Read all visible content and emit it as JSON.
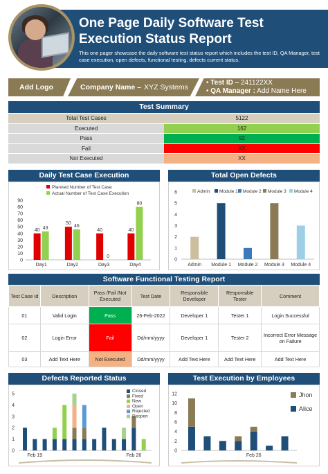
{
  "header": {
    "title": "One Page Daily Software Test Execution Status Report",
    "subtitle": "This one pager showcase the daily software test status report which includes the test ID, QA Manager, test case execution, open defects, functional testing, defects current status."
  },
  "info": {
    "logo": "Add Logo",
    "company_label": "Company Name –",
    "company_value": "XYZ Systems",
    "test_id_label": "Test ID –",
    "test_id_value": "241122XX",
    "qa_label": "QA Manager :",
    "qa_value": "Add Name Here"
  },
  "summary": {
    "title": "Test Summary",
    "rows": [
      {
        "label": "Total Test Cases",
        "value": "5122",
        "color": "#d6cfc0"
      },
      {
        "label": "Executed",
        "value": "162",
        "color": "#92d050"
      },
      {
        "label": "Pass",
        "value": "92",
        "color": "#00b050"
      },
      {
        "label": "Fail",
        "value": "XX",
        "color": "#ff0000"
      },
      {
        "label": "Not Executed",
        "value": "XX",
        "color": "#f4b183"
      }
    ]
  },
  "daily": {
    "title": "Daily Test Case Execution",
    "legend_planned": "Planned Number of Test Case",
    "legend_actual": "Actual Number of Test Case Execution"
  },
  "defects": {
    "title": "Total Open Defects"
  },
  "functional": {
    "title": "Software Functional Testing Report",
    "headers": [
      "Test Case Id",
      "Description",
      "Pass /Fail /Not Executed",
      "Test Date",
      "Responsible Developer",
      "Responsible Tester",
      "Comment"
    ],
    "rows": [
      [
        "01",
        "Valid Login",
        "Pass",
        "26-Feb-2022",
        "Developer 1",
        "Tester 1",
        "Login Successful"
      ],
      [
        "02",
        "Login Error",
        "Fail",
        "Dd/mm/yyyy",
        "Developer 1",
        "Tester 2",
        "Incorrect Error Message on Failure"
      ],
      [
        "03",
        "Add Text Here",
        "Not Executed",
        "Dd/mm/yyyy",
        "Add Text Here",
        "Add Text Here",
        "Add Text Here"
      ]
    ],
    "status_colors": {
      "Pass": "#00b050",
      "Fail": "#ff0000",
      "Not Executed": "#f4b183"
    }
  },
  "reported": {
    "title": "Defects Reported Status"
  },
  "employees": {
    "title": "Test Execution by Employees"
  },
  "chart_data": [
    {
      "type": "bar",
      "title": "Daily Test Case Execution",
      "categories": [
        "Day1",
        "Day2",
        "Day3",
        "Day4"
      ],
      "ylim": [
        0,
        90
      ],
      "yticks": [
        0,
        10,
        20,
        30,
        40,
        50,
        60,
        70,
        80,
        90
      ],
      "series": [
        {
          "name": "Planned Number of Test Case",
          "color": "#e00000",
          "values": [
            40,
            50,
            40,
            40
          ]
        },
        {
          "name": "Actual Number of Test Case Execution",
          "color": "#92d050",
          "values": [
            43,
            46,
            0,
            80
          ]
        }
      ]
    },
    {
      "type": "bar",
      "title": "Total Open Defects",
      "categories": [
        "Admin",
        "Module 1",
        "Module 2",
        "Module 3",
        "Module 4"
      ],
      "ylim": [
        0,
        6
      ],
      "yticks": [
        0,
        1,
        2,
        3,
        4,
        5,
        6
      ],
      "values": [
        2,
        5,
        1,
        5,
        3
      ],
      "colors": [
        "#cbbf9e",
        "#1f4e79",
        "#3a7ab8",
        "#8b7b55",
        "#9dd0e6"
      ],
      "legend": [
        "Admin",
        "Module 1",
        "Module 2",
        "Module 3",
        "Module 4"
      ]
    },
    {
      "type": "bar",
      "title": "Defects Reported Status",
      "stacked": true,
      "ylim": [
        0,
        5
      ],
      "yticks": [
        0,
        1,
        2,
        3,
        4,
        5
      ],
      "x_tick_labels": [
        {
          "index": 1,
          "label": "Feb 19"
        },
        {
          "index": 11,
          "label": "Feb 26"
        }
      ],
      "legend": [
        "Closed",
        "Fixed",
        "New",
        "Open",
        "Rejected",
        "Reopen"
      ],
      "colors": [
        "#1f4e79",
        "#8b7b55",
        "#92d050",
        "#f4b183",
        "#5b9bd5",
        "#a9d18e"
      ],
      "stacks": [
        [
          2,
          0,
          0,
          0,
          0,
          0
        ],
        [
          1,
          0,
          0,
          0,
          0,
          0
        ],
        [
          1,
          0,
          0,
          0,
          0,
          0
        ],
        [
          1,
          0,
          1,
          0,
          0,
          0
        ],
        [
          1,
          0,
          3,
          0,
          0,
          0
        ],
        [
          1,
          1,
          0,
          2,
          0,
          1
        ],
        [
          1,
          1,
          0,
          0,
          2,
          0
        ],
        [
          1,
          0,
          0,
          0,
          0,
          0
        ],
        [
          2,
          0,
          0,
          0,
          0,
          0
        ],
        [
          1,
          0,
          0,
          0,
          0,
          0
        ],
        [
          1,
          0,
          0,
          0,
          0,
          1
        ],
        [
          2,
          1,
          0,
          0,
          0,
          0
        ],
        [
          0,
          0,
          1,
          0,
          0,
          0
        ]
      ]
    },
    {
      "type": "bar",
      "title": "Test Execution by Employees",
      "stacked": true,
      "ylim": [
        0,
        12
      ],
      "yticks": [
        0,
        2,
        4,
        6,
        8,
        10,
        12
      ],
      "x_tick_labels": [
        {
          "index": 4,
          "label": "Feb 26"
        }
      ],
      "series": [
        {
          "name": "Alice",
          "color": "#1f4e79",
          "values": [
            5,
            3,
            2,
            2,
            4,
            1,
            3
          ]
        },
        {
          "name": "Jhon",
          "color": "#8b7b55",
          "values": [
            6,
            0,
            0,
            1,
            1,
            0,
            0
          ]
        }
      ]
    }
  ]
}
